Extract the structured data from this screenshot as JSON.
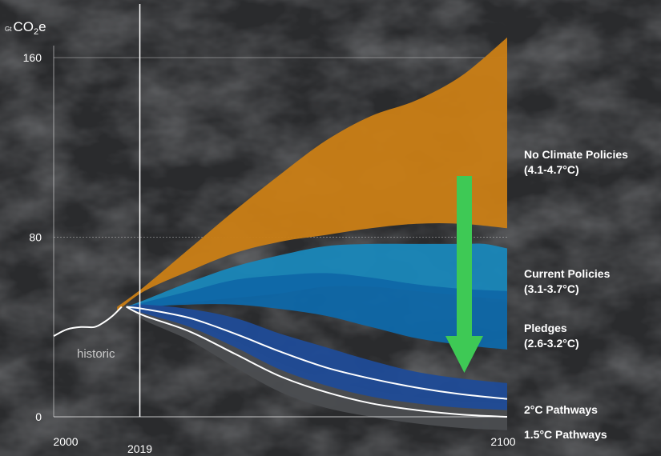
{
  "chart_data": {
    "type": "area",
    "y_unit_prefix": "Gt",
    "y_unit_main": "CO",
    "y_unit_sub": "2",
    "y_unit_suffix": "e",
    "xlim": [
      2000,
      2100
    ],
    "ylim": [
      0,
      160
    ],
    "x_ticks": [
      {
        "value": 2000,
        "label": "2000"
      },
      {
        "value": 2019,
        "label": "2019"
      },
      {
        "value": 2100,
        "label": "2100"
      }
    ],
    "y_ticks": [
      {
        "value": 0,
        "label": "0"
      },
      {
        "value": 80,
        "label": "80"
      },
      {
        "value": 160,
        "label": "160"
      }
    ],
    "reference_year": 2019,
    "historic": {
      "label": "historic",
      "x": [
        2000,
        2003,
        2006,
        2009,
        2011,
        2013,
        2015
      ],
      "y": [
        36,
        39,
        40,
        40,
        42,
        45,
        49
      ]
    },
    "series": [
      {
        "name": "No Climate Policies (4.1-4.7°C)",
        "color": "#c97e16",
        "x": [
          2014,
          2020,
          2030,
          2040,
          2050,
          2060,
          2070,
          2080,
          2090,
          2100
        ],
        "upper": [
          49,
          58,
          75,
          92,
          108,
          123,
          134,
          141,
          152,
          169
        ],
        "lower": [
          47,
          56,
          65,
          73,
          78,
          81,
          84,
          86,
          86,
          84
        ]
      },
      {
        "name": "Current Policies (3.1-3.7°C)",
        "color": "#1a86b8",
        "x": [
          2016,
          2020,
          2030,
          2040,
          2050,
          2060,
          2070,
          2080,
          2090,
          2095,
          2100
        ],
        "upper": [
          49,
          52,
          60,
          67,
          72,
          76,
          77,
          77,
          77,
          77,
          75
        ],
        "lower": [
          49,
          49,
          51,
          53,
          55,
          58,
          58,
          56,
          54,
          53,
          52
        ]
      },
      {
        "name": "Pledges (2.6-3.2°C)",
        "color": "#0f68a8",
        "x": [
          2016,
          2020,
          2030,
          2040,
          2050,
          2060,
          2070,
          2080,
          2090,
          2100
        ],
        "upper": [
          49,
          51,
          56,
          61,
          63,
          64,
          62,
          59,
          57,
          56
        ],
        "lower": [
          49,
          49,
          50,
          50,
          48,
          45,
          40,
          35,
          32,
          30
        ]
      },
      {
        "name": "2°C Pathways",
        "color": "#1f4b96",
        "x": [
          2016,
          2020,
          2030,
          2040,
          2050,
          2060,
          2070,
          2080,
          2090,
          2100
        ],
        "upper": [
          49,
          50,
          48,
          44,
          37,
          31,
          25,
          20,
          17,
          15
        ],
        "lower": [
          49,
          46,
          40,
          31,
          21,
          14,
          9,
          6,
          4,
          3
        ],
        "median": [
          49,
          48,
          44,
          37,
          29,
          22,
          17,
          13,
          10,
          8
        ]
      },
      {
        "name": "1.5°C Pathways",
        "color": "#4b4d50",
        "x": [
          2016,
          2020,
          2030,
          2040,
          2050,
          2060,
          2070,
          2080,
          2090,
          2100
        ],
        "upper": [
          49,
          47,
          42,
          34,
          24,
          17,
          12,
          9,
          7,
          6
        ],
        "lower": [
          49,
          43,
          34,
          22,
          11,
          4,
          0,
          -3,
          -5,
          -6
        ],
        "median": [
          49,
          45,
          38,
          28,
          18,
          11,
          6,
          3,
          1,
          0
        ]
      }
    ],
    "labels": {
      "no_policies": {
        "name": "No Climate Policies",
        "range": "(4.1-4.7°C)"
      },
      "current": {
        "name": "Current Policies",
        "range": "(3.1-3.7°C)"
      },
      "pledges": {
        "name": "Pledges",
        "range": "(2.6-3.2°C)"
      },
      "two_c": {
        "name": "2°C Pathways"
      },
      "one_five": {
        "name": "1.5°C Pathways"
      }
    },
    "annotation": {
      "type": "downward-arrow",
      "color": "#3ec955"
    }
  }
}
